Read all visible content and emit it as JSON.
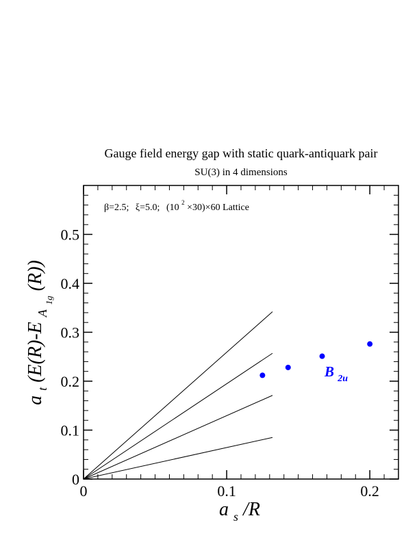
{
  "chart_data": {
    "type": "scatter",
    "title": "Gauge field energy gap with static quark-antiquark pair",
    "subtitle": "SU(3) in 4 dimensions",
    "annotation": {
      "beta": "β=2.5;",
      "xi": "ξ=5.0;",
      "lattice_base": "(10",
      "lattice_exp": "2",
      "lattice_tail": "×30)×60 Lattice"
    },
    "xlabel": {
      "main": "a",
      "sub": "s",
      "tail": "/R"
    },
    "ylabel": {
      "main": "a",
      "sub": "t",
      "middle": "(E(R)-E",
      "sub2": "A",
      "sub3": "1g",
      "tail": "(R))"
    },
    "xlim": [
      0,
      0.22
    ],
    "ylim": [
      0,
      0.6
    ],
    "x_ticks": [
      0,
      0.1,
      0.2
    ],
    "x_tick_labels": [
      "0",
      "0.1",
      "0.2"
    ],
    "y_ticks": [
      0,
      0.1,
      0.2,
      0.3,
      0.4,
      0.5
    ],
    "y_tick_labels": [
      "0",
      "0.1",
      "0.2",
      "0.3",
      "0.4",
      "0.5"
    ],
    "series": [
      {
        "name": "B2u",
        "label_main": "B",
        "label_sub": "2u",
        "color": "#0000ff",
        "x": [
          0.125,
          0.1429,
          0.1667,
          0.2
        ],
        "y": [
          0.212,
          0.228,
          0.251,
          0.276
        ]
      }
    ],
    "reference_lines": [
      {
        "x0": 0,
        "y0": 0,
        "x1": 0.132,
        "y1": 0.085,
        "color": "#000000"
      },
      {
        "x0": 0,
        "y0": 0,
        "x1": 0.132,
        "y1": 0.171,
        "color": "#000000"
      },
      {
        "x0": 0,
        "y0": 0,
        "x1": 0.132,
        "y1": 0.257,
        "color": "#000000"
      },
      {
        "x0": 0,
        "y0": 0,
        "x1": 0.132,
        "y1": 0.342,
        "color": "#000000"
      }
    ]
  }
}
